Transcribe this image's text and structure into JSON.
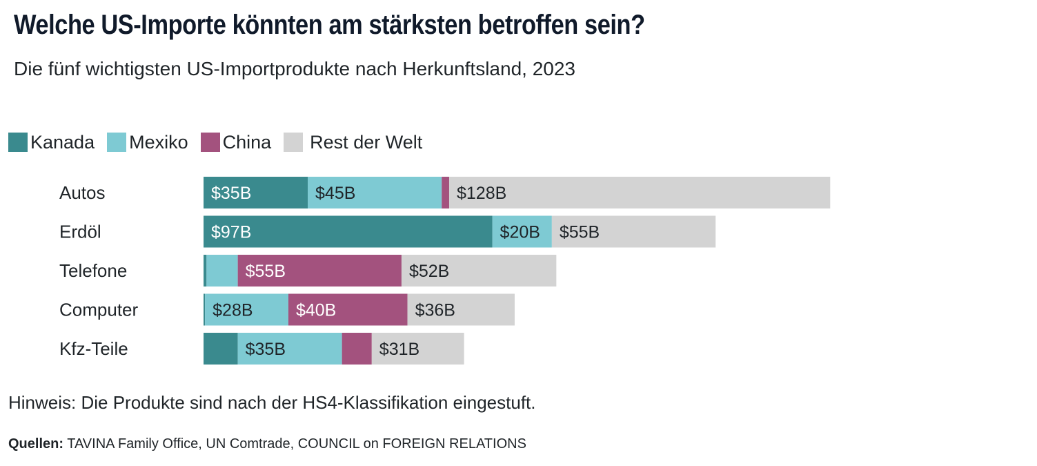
{
  "title": "Welche US-Importe könnten am stärksten betroffen sein?",
  "subtitle": "Die fünf wichtigsten US-Importprodukte nach Herkunftsland, 2023",
  "legend": [
    {
      "name": "Kanada",
      "color": "#3a8a8e"
    },
    {
      "name": "Mexiko",
      "color": "#7ecad3"
    },
    {
      "name": "China",
      "color": "#a3527e"
    },
    {
      "name": "Rest der Welt",
      "color": "#d3d3d3"
    }
  ],
  "note": "Hinweis: Die Produkte sind nach der HS4-Klassifikation eingestuft.",
  "source_label": "Quellen:",
  "source_text": "TAVINA Family Office, UN Comtrade, COUNCIL on FOREIGN RELATIONS",
  "chart_data": {
    "type": "bar",
    "orientation": "horizontal",
    "stacked": true,
    "unit": "$B",
    "categories": [
      "Autos",
      "Erdöl",
      "Telefone",
      "Computer",
      "Kfz-Teile"
    ],
    "series": [
      {
        "name": "Kanada",
        "color": "#3a8a8e",
        "values": [
          35,
          97,
          1,
          0.5,
          11.5
        ],
        "labels": [
          "$35B",
          "$97B",
          "",
          "",
          ""
        ],
        "label_color": "#ffffff"
      },
      {
        "name": "Mexiko",
        "color": "#7ecad3",
        "values": [
          45,
          20,
          10.5,
          28,
          35
        ],
        "labels": [
          "$45B",
          "$20B",
          "",
          "$28B",
          "$35B"
        ],
        "label_color": "#1f2428"
      },
      {
        "name": "China",
        "color": "#a3527e",
        "values": [
          2.5,
          0,
          55,
          40,
          10
        ],
        "labels": [
          "",
          "",
          "$55B",
          "$40B",
          ""
        ],
        "label_color": "#ffffff"
      },
      {
        "name": "Rest der Welt",
        "color": "#d3d3d3",
        "values": [
          128,
          55,
          52,
          36,
          31
        ],
        "labels": [
          "$128B",
          "$55B",
          "$52B",
          "$36B",
          "$31B"
        ],
        "label_color": "#1f2428"
      }
    ],
    "legend_position": "top-left",
    "grid": false
  }
}
